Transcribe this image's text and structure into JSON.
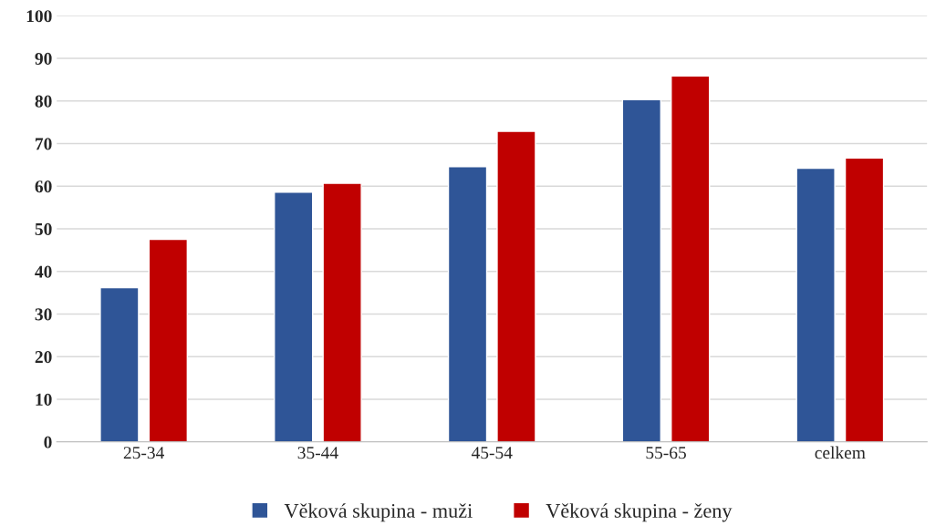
{
  "chart_data": {
    "type": "bar",
    "categories": [
      "25-34",
      "35-44",
      "45-54",
      "55-65",
      "celkem"
    ],
    "series": [
      {
        "name": "Věková skupina - muži",
        "color": "#2f5597",
        "values": [
          36.2,
          58.6,
          64.6,
          80.3,
          64.2
        ]
      },
      {
        "name": "Věková skupina - ženy",
        "color": "#c00000",
        "values": [
          47.5,
          60.7,
          72.9,
          85.9,
          66.6
        ]
      }
    ],
    "ylim": [
      0,
      100
    ],
    "yticks": [
      0,
      10,
      20,
      30,
      40,
      50,
      60,
      70,
      80,
      90,
      100
    ],
    "grid": "y",
    "legend": "bottom"
  }
}
